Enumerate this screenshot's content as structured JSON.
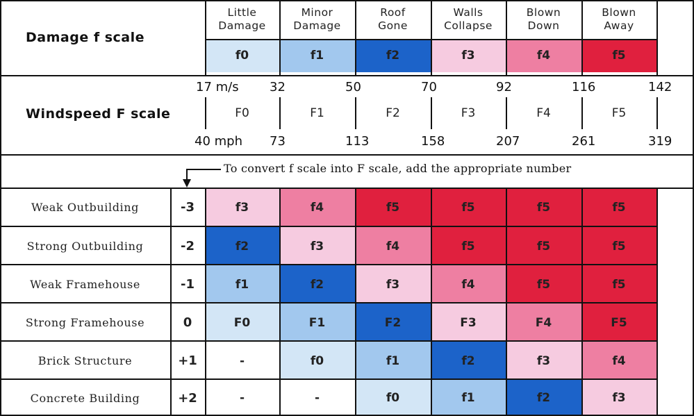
{
  "colors": {
    "f0": "#d3e6f6",
    "f1": "#a2c8ee",
    "f2": "#1c63c9",
    "f3": "#f6cbe0",
    "f4": "#ee7fa2",
    "f5": "#e0203e",
    "none": "#ffffff"
  },
  "damage": {
    "title": "Damage  f scale",
    "categories": [
      {
        "line1": "Little",
        "line2": "Damage",
        "code": "f0",
        "color_key": "f0"
      },
      {
        "line1": "Minor",
        "line2": "Damage",
        "code": "f1",
        "color_key": "f1"
      },
      {
        "line1": "Roof",
        "line2": "Gone",
        "code": "f2",
        "color_key": "f2"
      },
      {
        "line1": "Walls",
        "line2": "Collapse",
        "code": "f3",
        "color_key": "f3"
      },
      {
        "line1": "Blown",
        "line2": "Down",
        "code": "f4",
        "color_key": "f4"
      },
      {
        "line1": "Blown",
        "line2": "Away",
        "code": "f5",
        "color_key": "f5"
      }
    ]
  },
  "windspeed": {
    "title": "Windspeed  F scale",
    "ms_labels": [
      "17 m/s",
      "32",
      "50",
      "70",
      "92",
      "116",
      "142"
    ],
    "mph_labels": [
      "40 mph",
      "73",
      "113",
      "158",
      "207",
      "261",
      "319"
    ],
    "ranges": [
      "F0",
      "F1",
      "F2",
      "F3",
      "F4",
      "F5"
    ]
  },
  "note": "To convert f scale into F scale, add the appropriate number",
  "rows": [
    {
      "name": "Weak Outbuilding",
      "adj": "-3",
      "cells": [
        {
          "label": "f3",
          "color_key": "f3"
        },
        {
          "label": "f4",
          "color_key": "f4"
        },
        {
          "label": "f5",
          "color_key": "f5"
        },
        {
          "label": "f5",
          "color_key": "f5"
        },
        {
          "label": "f5",
          "color_key": "f5"
        },
        {
          "label": "f5",
          "color_key": "f5"
        }
      ]
    },
    {
      "name": "Strong Outbuilding",
      "adj": "-2",
      "cells": [
        {
          "label": "f2",
          "color_key": "f2"
        },
        {
          "label": "f3",
          "color_key": "f3"
        },
        {
          "label": "f4",
          "color_key": "f4"
        },
        {
          "label": "f5",
          "color_key": "f5"
        },
        {
          "label": "f5",
          "color_key": "f5"
        },
        {
          "label": "f5",
          "color_key": "f5"
        }
      ]
    },
    {
      "name": "Weak Framehouse",
      "adj": "-1",
      "cells": [
        {
          "label": "f1",
          "color_key": "f1"
        },
        {
          "label": "f2",
          "color_key": "f2"
        },
        {
          "label": "f3",
          "color_key": "f3"
        },
        {
          "label": "f4",
          "color_key": "f4"
        },
        {
          "label": "f5",
          "color_key": "f5"
        },
        {
          "label": "f5",
          "color_key": "f5"
        }
      ]
    },
    {
      "name": "Strong Framehouse",
      "adj": "0",
      "cells": [
        {
          "label": "F0",
          "color_key": "f0"
        },
        {
          "label": "F1",
          "color_key": "f1"
        },
        {
          "label": "F2",
          "color_key": "f2"
        },
        {
          "label": "F3",
          "color_key": "f3"
        },
        {
          "label": "F4",
          "color_key": "f4"
        },
        {
          "label": "F5",
          "color_key": "f5"
        }
      ]
    },
    {
      "name": "Brick Structure",
      "adj": "+1",
      "cells": [
        {
          "label": "-",
          "color_key": "none"
        },
        {
          "label": "f0",
          "color_key": "f0"
        },
        {
          "label": "f1",
          "color_key": "f1"
        },
        {
          "label": "f2",
          "color_key": "f2"
        },
        {
          "label": "f3",
          "color_key": "f3"
        },
        {
          "label": "f4",
          "color_key": "f4"
        }
      ]
    },
    {
      "name": "Concrete Building",
      "adj": "+2",
      "cells": [
        {
          "label": "-",
          "color_key": "none"
        },
        {
          "label": "-",
          "color_key": "none"
        },
        {
          "label": "f0",
          "color_key": "f0"
        },
        {
          "label": "f1",
          "color_key": "f1"
        },
        {
          "label": "f2",
          "color_key": "f2"
        },
        {
          "label": "f3",
          "color_key": "f3"
        }
      ]
    }
  ]
}
